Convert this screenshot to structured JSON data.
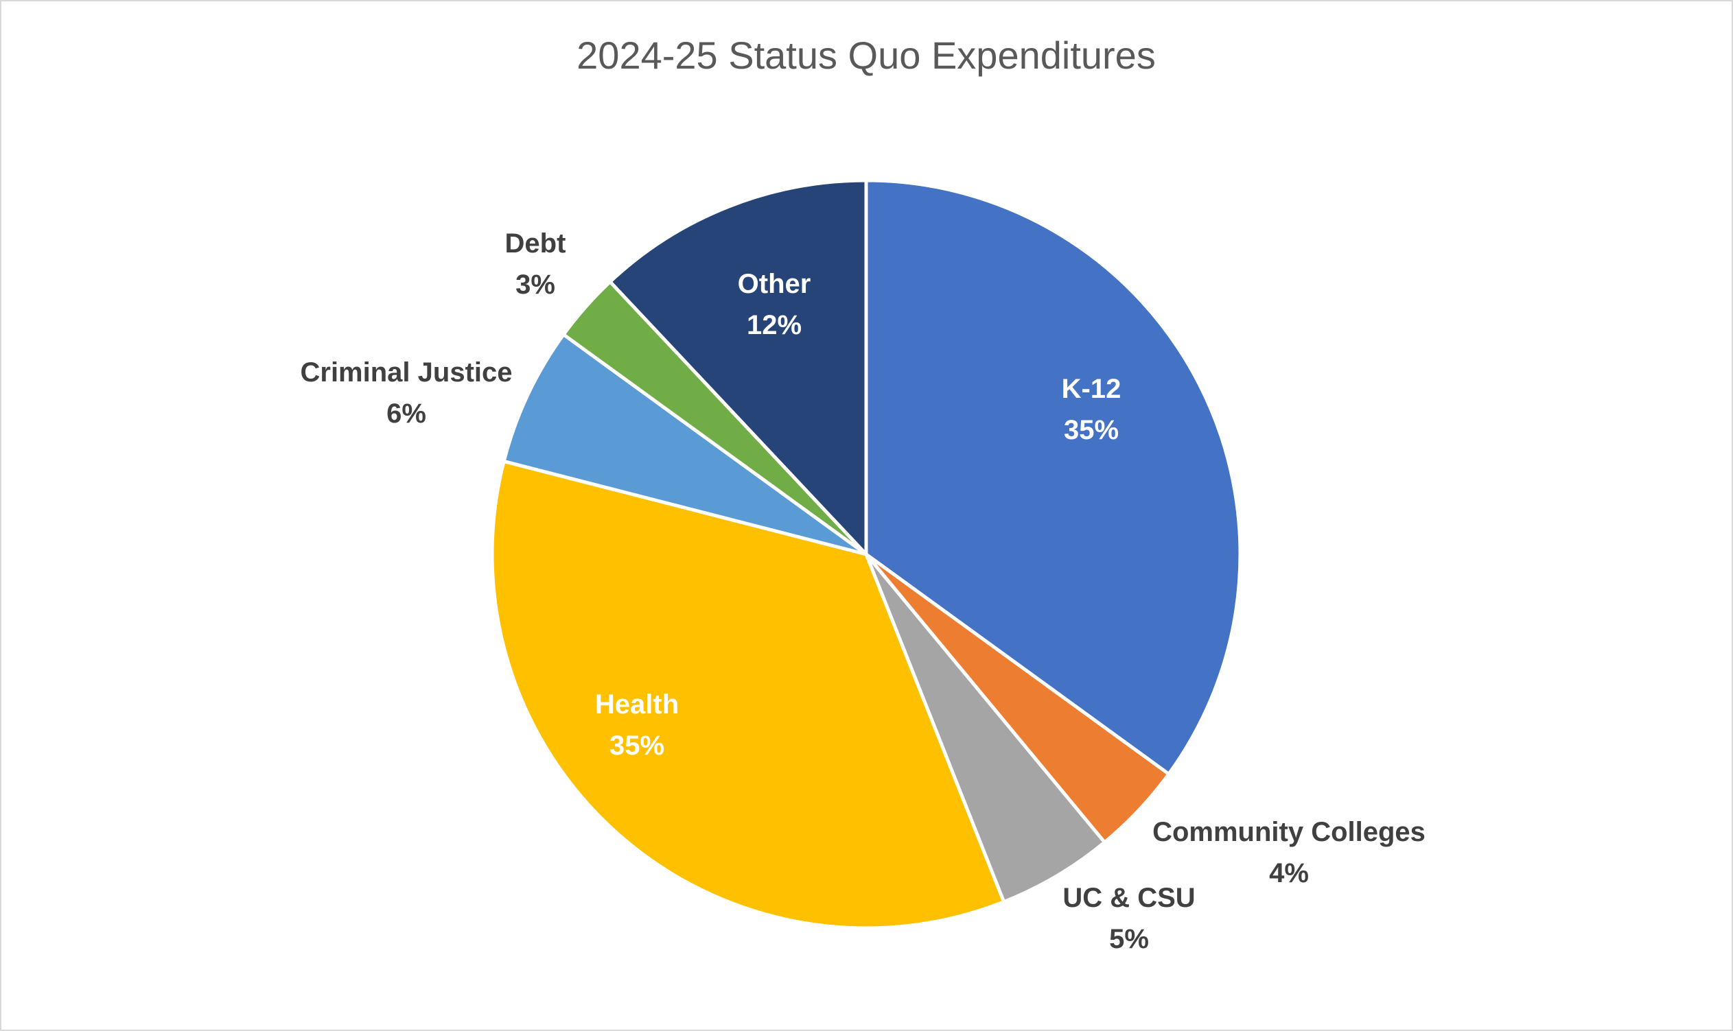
{
  "chart_data": {
    "type": "pie",
    "title": "2024-25 Status Quo Expenditures",
    "start_angle_deg": 0,
    "direction": "clockwise",
    "slices": [
      {
        "key": "k12",
        "name": "K-12",
        "value": 35,
        "label": "35%",
        "color": "#4472C4",
        "text_color": "#ffffff"
      },
      {
        "key": "community-colleges",
        "name": "Community Colleges",
        "value": 4,
        "label": "4%",
        "color": "#ED7D31",
        "text_color": "#404040"
      },
      {
        "key": "uc-csu",
        "name": "UC & CSU",
        "value": 5,
        "label": "5%",
        "color": "#A5A5A5",
        "text_color": "#404040"
      },
      {
        "key": "health",
        "name": "Health",
        "value": 35,
        "label": "35%",
        "color": "#FFC000",
        "text_color": "#ffffff"
      },
      {
        "key": "criminal-justice",
        "name": "Criminal Justice",
        "value": 6,
        "label": "6%",
        "color": "#5B9BD5",
        "text_color": "#404040"
      },
      {
        "key": "debt",
        "name": "Debt",
        "value": 3,
        "label": "3%",
        "color": "#70AD47",
        "text_color": "#404040"
      },
      {
        "key": "other",
        "name": "Other",
        "value": 12,
        "label": "12%",
        "color": "#264478",
        "text_color": "#ffffff"
      }
    ]
  }
}
